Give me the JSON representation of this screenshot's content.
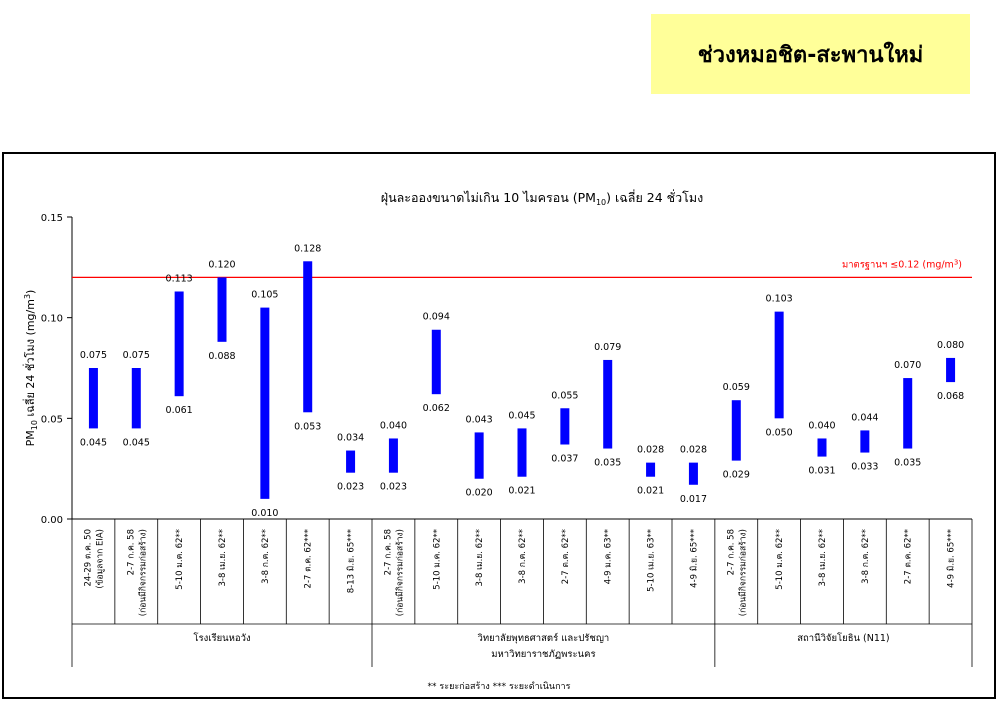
{
  "header": {
    "title": "ช่วงหมอชิต-สะพานใหม่"
  },
  "colors": {
    "bar": "#0000ff",
    "standard_line": "#ff0000",
    "title_box": "#ffff99"
  },
  "chart_data": {
    "type": "bar",
    "subtype": "floating-range",
    "title": "ฝุ่นละอองขนาดไม่เกิน 10 ไมครอน (PM10) เฉลี่ย 24 ชั่วโมง",
    "title_parts": {
      "before": "ฝุ่นละอองขนาดไม่เกิน 10 ไมครอน (PM",
      "sub": "10",
      "after": ") เฉลี่ย 24 ชั่วโมง"
    },
    "ylabel": "PM10 เฉลี่ย 24 ชั่วโมง (mg/m3)",
    "ylabel_parts": {
      "a": "PM",
      "sub": "10",
      "b": " เฉลี่ย 24 ชั่วโมง (mg/m",
      "sup": "3",
      "c": ")"
    },
    "ylim": [
      0,
      0.15
    ],
    "yticks": [
      "0.00",
      "0.05",
      "0.10",
      "0.15"
    ],
    "standard": {
      "value": 0.12,
      "label": "มาตรฐานฯ ≤0.12 (mg/m3)",
      "label_parts": {
        "a": "มาตรฐานฯ ≤0.12 (mg/m",
        "sup": "3",
        "b": ")"
      }
    },
    "grid": false,
    "legend_note": "** ระยะก่อสร้าง   *** ระยะดำเนินการ",
    "categories": [
      {
        "line1": "24-29 ต.ค. 50",
        "line2": "(ข้อมูลจาก EIA)"
      },
      {
        "line1": "2-7 ก.ค. 58",
        "line2": "(ก่อนมีกิจกรรมก่อสร้าง)"
      },
      {
        "line1": "5-10 ม.ค. 62**",
        "line2": ""
      },
      {
        "line1": "3-8 เม.ย. 62**",
        "line2": ""
      },
      {
        "line1": "3-8 ก.ค. 62**",
        "line2": ""
      },
      {
        "line1": "2-7 ต.ค. 62***",
        "line2": ""
      },
      {
        "line1": "8-13 มิ.ย. 65***",
        "line2": ""
      },
      {
        "line1": "2-7 ก.ค. 58",
        "line2": "(ก่อนมีกิจกรรมก่อสร้าง)"
      },
      {
        "line1": "5-10 ม.ค. 62**",
        "line2": ""
      },
      {
        "line1": "3-8 เม.ย. 62**",
        "line2": ""
      },
      {
        "line1": "3-8 ก.ค. 62**",
        "line2": ""
      },
      {
        "line1": "2-7 ต.ค. 62**",
        "line2": ""
      },
      {
        "line1": "4-9 ม.ค. 63**",
        "line2": ""
      },
      {
        "line1": "5-10 เม.ย. 63**",
        "line2": ""
      },
      {
        "line1": "4-9 มิ.ย. 65***",
        "line2": ""
      },
      {
        "line1": "2-7 ก.ค. 58",
        "line2": "(ก่อนมีกิจกรรมก่อสร้าง)"
      },
      {
        "line1": "5-10 ม.ค. 62**",
        "line2": ""
      },
      {
        "line1": "3-8 เม.ย. 62**",
        "line2": ""
      },
      {
        "line1": "3-8 ก.ค. 62**",
        "line2": ""
      },
      {
        "line1": "2-7 ต.ค. 62**",
        "line2": ""
      },
      {
        "line1": "4-9 มิ.ย. 65***",
        "line2": ""
      }
    ],
    "series": [
      {
        "field": "max",
        "values": [
          0.075,
          0.075,
          0.113,
          0.12,
          0.105,
          0.128,
          0.034,
          0.04,
          0.094,
          0.043,
          0.045,
          0.055,
          0.079,
          0.028,
          0.028,
          0.059,
          0.103,
          0.04,
          0.044,
          0.07,
          0.08
        ]
      },
      {
        "field": "min",
        "values": [
          0.045,
          0.045,
          0.061,
          0.088,
          0.01,
          0.053,
          0.023,
          0.023,
          0.062,
          0.02,
          0.021,
          0.037,
          0.035,
          0.021,
          0.017,
          0.029,
          0.05,
          0.031,
          0.033,
          0.035,
          0.068
        ]
      }
    ],
    "max_labels": [
      "0.075",
      "0.075",
      "0.113",
      "0.120",
      "0.105",
      "0.128",
      "0.034",
      "0.040",
      "0.094",
      "0.043",
      "0.045",
      "0.055",
      "0.079",
      "0.028",
      "0.028",
      "0.059",
      "0.103",
      "0.040",
      "0.044",
      "0.070",
      "0.080"
    ],
    "min_labels": [
      "0.045",
      "0.045",
      "0.061",
      "0.088",
      "0.010",
      "0.053",
      "0.023",
      "0.023",
      "0.062",
      "0.020",
      "0.021",
      "0.037",
      "0.035",
      "0.021",
      "0.017",
      "0.029",
      "0.050",
      "0.031",
      "0.033",
      "0.035",
      "0.068"
    ],
    "groups": [
      {
        "name": "โรงเรียนหอวัง",
        "name2": "",
        "count": 7
      },
      {
        "name": "วิทยาลัยพุทธศาสตร์ และปรัชญา",
        "name2": "มหาวิทยาราชภัฏพระนคร",
        "count": 8
      },
      {
        "name": "สถานีวิจัยโยธิน (N11)",
        "name2": "",
        "count": 6
      }
    ]
  }
}
